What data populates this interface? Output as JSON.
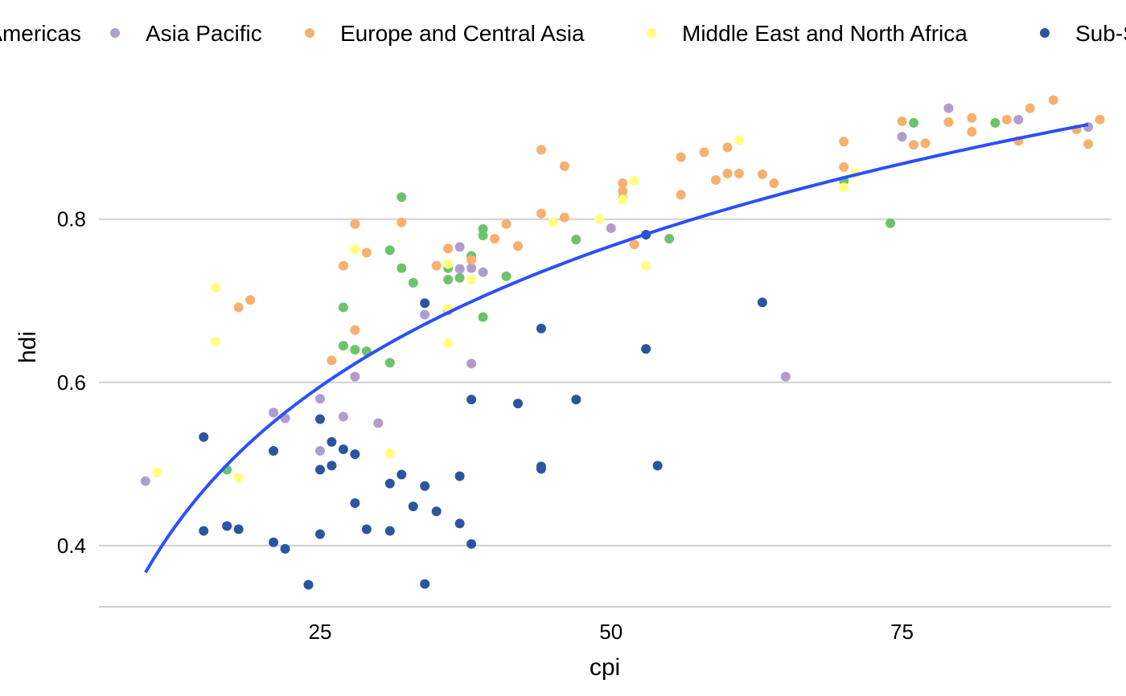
{
  "chart_data": {
    "type": "scatter",
    "xlabel": "cpi",
    "ylabel": "hdi",
    "xlim": [
      6,
      93
    ],
    "ylim": [
      0.325,
      0.975
    ],
    "xticks": [
      25,
      50,
      75
    ],
    "yticks": [
      0.4,
      0.6,
      0.8
    ],
    "xtick_labels": [
      "25",
      "50",
      "75"
    ],
    "ytick_labels": [
      "0.4",
      "0.6",
      "0.8"
    ],
    "grid": "horizontal",
    "legend_placement": "top",
    "legend": [
      {
        "label": "Americas",
        "color": "#6CC36C"
      },
      {
        "label": "Asia Pacific",
        "color": "#B19CD0"
      },
      {
        "label": "Europe and Central Asia",
        "color": "#F7B06E"
      },
      {
        "label": "Middle East and North Africa",
        "color": "#FFFF80"
      },
      {
        "label": "Sub-Saharan Africa",
        "color": "#2B55A0"
      }
    ],
    "trend": {
      "color": "#2B4FFF",
      "x_start": 10,
      "x_end": 91,
      "y_start": 0.367,
      "y_end": 0.916
    },
    "series": [
      {
        "name": "Americas",
        "color": "#6CC36C",
        "points": [
          [
            17,
            0.493
          ],
          [
            27,
            0.692
          ],
          [
            27,
            0.645
          ],
          [
            28,
            0.64
          ],
          [
            29,
            0.638
          ],
          [
            31,
            0.624
          ],
          [
            31,
            0.762
          ],
          [
            32,
            0.827
          ],
          [
            32,
            0.74
          ],
          [
            33,
            0.722
          ],
          [
            36,
            0.74
          ],
          [
            36,
            0.726
          ],
          [
            37,
            0.728
          ],
          [
            38,
            0.755
          ],
          [
            39,
            0.788
          ],
          [
            39,
            0.78
          ],
          [
            39,
            0.68
          ],
          [
            41,
            0.73
          ],
          [
            47,
            0.775
          ],
          [
            55,
            0.776
          ],
          [
            70,
            0.847
          ],
          [
            74,
            0.795
          ],
          [
            76,
            0.918
          ],
          [
            83,
            0.918
          ]
        ]
      },
      {
        "name": "Asia Pacific",
        "color": "#B19CD0",
        "points": [
          [
            10,
            0.479
          ],
          [
            21,
            0.563
          ],
          [
            22,
            0.556
          ],
          [
            25,
            0.58
          ],
          [
            25,
            0.516
          ],
          [
            27,
            0.558
          ],
          [
            28,
            0.607
          ],
          [
            30,
            0.55
          ],
          [
            34,
            0.683
          ],
          [
            36,
            0.688
          ],
          [
            37,
            0.766
          ],
          [
            37,
            0.739
          ],
          [
            38,
            0.74
          ],
          [
            38,
            0.623
          ],
          [
            39,
            0.735
          ],
          [
            50,
            0.789
          ],
          [
            65,
            0.607
          ],
          [
            75,
            0.901
          ],
          [
            79,
            0.936
          ],
          [
            85,
            0.922
          ],
          [
            91,
            0.913
          ]
        ]
      },
      {
        "name": "Europe and Central Asia",
        "color": "#F7B06E",
        "points": [
          [
            18,
            0.692
          ],
          [
            19,
            0.701
          ],
          [
            26,
            0.627
          ],
          [
            27,
            0.743
          ],
          [
            28,
            0.794
          ],
          [
            28,
            0.664
          ],
          [
            29,
            0.759
          ],
          [
            32,
            0.796
          ],
          [
            35,
            0.743
          ],
          [
            36,
            0.764
          ],
          [
            38,
            0.75
          ],
          [
            40,
            0.776
          ],
          [
            41,
            0.794
          ],
          [
            42,
            0.767
          ],
          [
            44,
            0.807
          ],
          [
            44,
            0.885
          ],
          [
            46,
            0.865
          ],
          [
            46,
            0.802
          ],
          [
            51,
            0.844
          ],
          [
            51,
            0.834
          ],
          [
            51,
            0.826
          ],
          [
            52,
            0.769
          ],
          [
            56,
            0.876
          ],
          [
            56,
            0.83
          ],
          [
            58,
            0.882
          ],
          [
            59,
            0.848
          ],
          [
            60,
            0.888
          ],
          [
            60,
            0.856
          ],
          [
            61,
            0.856
          ],
          [
            63,
            0.855
          ],
          [
            64,
            0.844
          ],
          [
            70,
            0.895
          ],
          [
            70,
            0.864
          ],
          [
            75,
            0.92
          ],
          [
            76,
            0.891
          ],
          [
            77,
            0.893
          ],
          [
            79,
            0.919
          ],
          [
            81,
            0.924
          ],
          [
            81,
            0.907
          ],
          [
            84,
            0.922
          ],
          [
            85,
            0.896
          ],
          [
            86,
            0.936
          ],
          [
            88,
            0.946
          ],
          [
            90,
            0.91
          ],
          [
            91,
            0.892
          ],
          [
            92,
            0.922
          ]
        ]
      },
      {
        "name": "Middle East and North Africa",
        "color": "#FFFF80",
        "points": [
          [
            11,
            0.49
          ],
          [
            16,
            0.716
          ],
          [
            16,
            0.65
          ],
          [
            18,
            0.483
          ],
          [
            28,
            0.763
          ],
          [
            31,
            0.513
          ],
          [
            36,
            0.745
          ],
          [
            36,
            0.691
          ],
          [
            36,
            0.648
          ],
          [
            38,
            0.726
          ],
          [
            45,
            0.796
          ],
          [
            49,
            0.8
          ],
          [
            51,
            0.824
          ],
          [
            52,
            0.847
          ],
          [
            53,
            0.743
          ],
          [
            61,
            0.897
          ],
          [
            70,
            0.839
          ],
          [
            71,
            0.856
          ]
        ]
      },
      {
        "name": "Sub-Saharan Africa",
        "color": "#2B55A0",
        "points": [
          [
            15,
            0.533
          ],
          [
            15,
            0.418
          ],
          [
            17,
            0.424
          ],
          [
            18,
            0.42
          ],
          [
            21,
            0.516
          ],
          [
            21,
            0.404
          ],
          [
            22,
            0.396
          ],
          [
            24,
            0.352
          ],
          [
            25,
            0.555
          ],
          [
            25,
            0.493
          ],
          [
            25,
            0.414
          ],
          [
            26,
            0.527
          ],
          [
            26,
            0.498
          ],
          [
            27,
            0.518
          ],
          [
            28,
            0.512
          ],
          [
            28,
            0.452
          ],
          [
            29,
            0.42
          ],
          [
            31,
            0.476
          ],
          [
            31,
            0.418
          ],
          [
            32,
            0.487
          ],
          [
            33,
            0.448
          ],
          [
            34,
            0.697
          ],
          [
            34,
            0.473
          ],
          [
            34,
            0.353
          ],
          [
            35,
            0.442
          ],
          [
            37,
            0.485
          ],
          [
            37,
            0.427
          ],
          [
            38,
            0.579
          ],
          [
            38,
            0.402
          ],
          [
            42,
            0.574
          ],
          [
            44,
            0.666
          ],
          [
            44,
            0.497
          ],
          [
            44,
            0.494
          ],
          [
            47,
            0.579
          ],
          [
            53,
            0.781
          ],
          [
            53,
            0.641
          ],
          [
            54,
            0.498
          ],
          [
            63,
            0.698
          ]
        ]
      }
    ]
  }
}
